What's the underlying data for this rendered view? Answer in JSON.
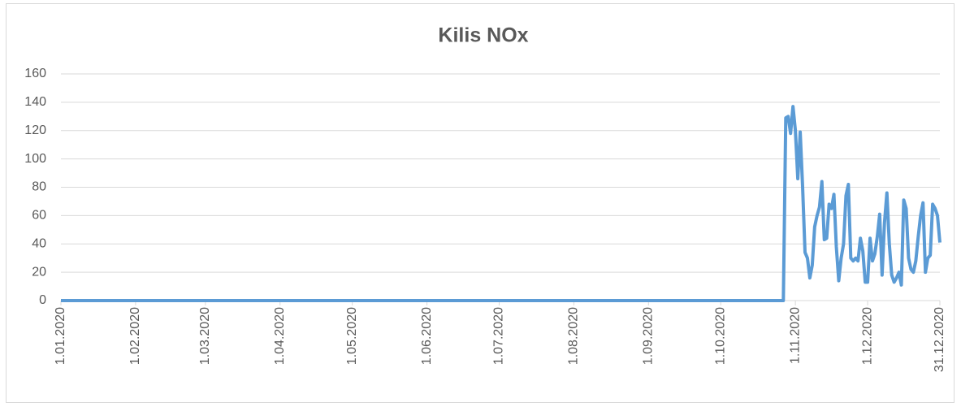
{
  "chart_data": {
    "type": "line",
    "title": "Kilis NOx",
    "x": [
      "1.01.2020",
      "27.10.2020",
      "28.10.2020",
      "29.10.2020",
      "30.10.2020",
      "31.10.2020",
      "1.11.2020",
      "2.11.2020",
      "3.11.2020",
      "4.11.2020",
      "5.11.2020",
      "6.11.2020",
      "7.11.2020",
      "8.11.2020",
      "9.11.2020",
      "10.11.2020",
      "11.11.2020",
      "12.11.2020",
      "13.11.2020",
      "14.11.2020",
      "15.11.2020",
      "16.11.2020",
      "17.11.2020",
      "18.11.2020",
      "19.11.2020",
      "20.11.2020",
      "21.11.2020",
      "22.11.2020",
      "23.11.2020",
      "24.11.2020",
      "25.11.2020",
      "26.11.2020",
      "27.11.2020",
      "28.11.2020",
      "29.11.2020",
      "30.11.2020",
      "1.12.2020",
      "2.12.2020",
      "3.12.2020",
      "4.12.2020",
      "5.12.2020",
      "6.12.2020",
      "7.12.2020",
      "8.12.2020",
      "9.12.2020",
      "10.12.2020",
      "11.12.2020",
      "12.12.2020",
      "13.12.2020",
      "14.12.2020",
      "15.12.2020",
      "16.12.2020",
      "17.12.2020",
      "18.12.2020",
      "19.12.2020",
      "20.12.2020",
      "21.12.2020",
      "22.12.2020",
      "23.12.2020",
      "24.12.2020",
      "25.12.2020",
      "26.12.2020",
      "27.12.2020",
      "28.12.2020",
      "29.12.2020",
      "30.12.2020",
      "31.12.2020"
    ],
    "series": [
      {
        "name": "NOx",
        "color": "#5b9bd5",
        "values": [
          0,
          0,
          129,
          130,
          118,
          137,
          120,
          86,
          119,
          80,
          34,
          30,
          16,
          25,
          52,
          60,
          66,
          84,
          43,
          44,
          68,
          65,
          75,
          38,
          14,
          30,
          40,
          74,
          82,
          30,
          28,
          30,
          28,
          44,
          35,
          13,
          13,
          44,
          28,
          33,
          45,
          61,
          18,
          55,
          76,
          40,
          18,
          13,
          16,
          20,
          11,
          71,
          65,
          30,
          22,
          20,
          28,
          45,
          60,
          69,
          20,
          30,
          32,
          68,
          65,
          60,
          41
        ]
      }
    ],
    "xlim": [
      "1.01.2020",
      "31.12.2020"
    ],
    "xticks": [
      "1.01.2020",
      "1.02.2020",
      "1.03.2020",
      "1.04.2020",
      "1.05.2020",
      "1.06.2020",
      "1.07.2020",
      "1.08.2020",
      "1.09.2020",
      "1.10.2020",
      "1.11.2020",
      "1.12.2020",
      "31.12.2020"
    ],
    "ylim": [
      0,
      160
    ],
    "yticks": [
      0,
      20,
      40,
      60,
      80,
      100,
      120,
      140,
      160
    ],
    "grid": true
  }
}
